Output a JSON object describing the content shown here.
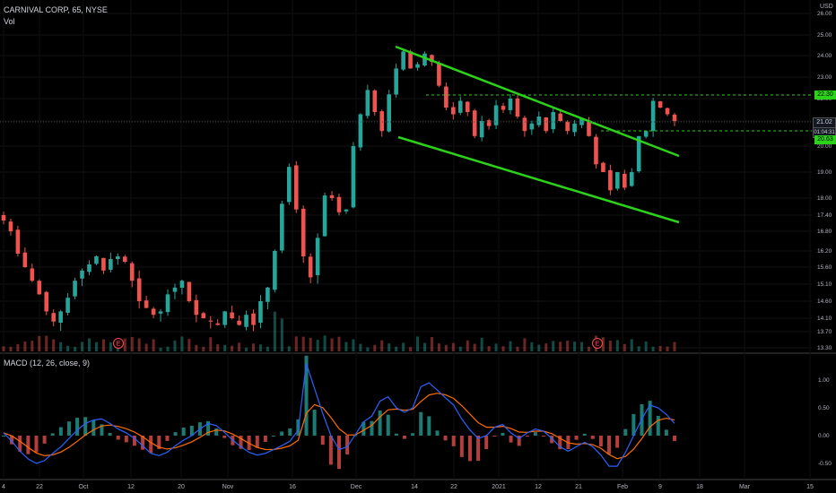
{
  "header": {
    "symbol": "CARNIVAL CORP, 65, NYSE",
    "volume_label": "Vol",
    "macd_label": "MACD (12, 26, close, 9)",
    "currency": "USD"
  },
  "price_tags": {
    "top_dashed": "22.30",
    "current": "21.02",
    "countdown": "01:04:31",
    "bottom_dashed": "20.63"
  },
  "colors": {
    "up": "#26a69a",
    "down": "#ef5350",
    "trendline": "#2cd11a",
    "dashed": "#2cd11a",
    "macd_line": "#2962ff",
    "signal_line": "#ff6d00",
    "earnings_marker": "#ef5350"
  },
  "chart_data": {
    "type": "line",
    "title": "CARNIVAL CORP, 65, NYSE",
    "y_ticks": [
      "26.00",
      "25.00",
      "24.00",
      "23.00",
      "22.00",
      "21.00",
      "20.00",
      "19.00",
      "18.00",
      "17.40",
      "16.80",
      "16.20",
      "15.60",
      "15.10",
      "14.60",
      "14.10",
      "13.70",
      "13.30"
    ],
    "x_ticks": [
      "4",
      "22",
      "Oct",
      "12",
      "20",
      "Nov",
      "16",
      "Dec",
      "14",
      "22",
      "2021",
      "12",
      "21",
      "Feb",
      "9",
      "18",
      "Mar",
      "15"
    ],
    "macd_y_ticks": [
      "1.00",
      "0.50",
      "0.00",
      "-0.50"
    ],
    "series": [
      {
        "name": "price",
        "values": [
          17.2,
          16.8,
          16.1,
          15.6,
          15.2,
          14.8,
          14.3,
          14.0,
          14.3,
          14.7,
          15.2,
          15.5,
          15.7,
          16.0,
          15.5,
          15.9,
          16.0,
          15.8,
          15.2,
          14.6,
          14.4,
          14.2,
          14.3,
          14.8,
          15.0,
          15.2,
          14.6,
          14.2,
          14.1,
          14.0,
          13.9,
          14.3,
          14.1,
          13.9,
          14.2,
          13.9,
          14.6,
          15.0,
          16.2,
          17.8,
          19.2,
          17.6,
          16.0,
          15.3,
          16.6,
          18.1,
          18.0,
          17.5,
          17.6,
          20.0,
          21.3,
          22.4,
          21.4,
          20.6,
          22.2,
          23.4,
          24.2,
          23.4,
          23.6,
          24.1,
          23.7,
          22.6,
          21.6,
          21.3,
          21.9,
          21.4,
          20.4,
          21.0,
          20.8,
          21.7,
          21.5,
          22.0,
          21.2,
          20.6,
          20.9,
          21.2,
          20.6,
          21.4,
          21.0,
          20.6,
          20.9,
          21.1,
          20.4,
          19.3,
          19.0,
          18.3,
          19.0,
          18.4,
          19.0,
          20.4,
          20.6,
          21.9,
          21.6,
          21.3,
          21.0
        ]
      },
      {
        "name": "MACD (12, 26, close, 9)",
        "values": [
          0.05,
          -0.1,
          -0.28,
          -0.42,
          -0.5,
          -0.45,
          -0.32,
          -0.2,
          -0.05,
          0.1,
          0.22,
          0.28,
          0.3,
          0.22,
          0.12,
          0.05,
          -0.05,
          -0.18,
          -0.32,
          -0.36,
          -0.3,
          -0.18,
          -0.08,
          0.0,
          0.12,
          0.22,
          0.18,
          0.06,
          -0.08,
          -0.2,
          -0.3,
          -0.35,
          -0.32,
          -0.25,
          -0.18,
          -0.1,
          0.1,
          1.3,
          0.85,
          0.4,
          0.0,
          -0.25,
          -0.2,
          0.02,
          0.25,
          0.35,
          0.62,
          0.7,
          0.5,
          0.42,
          0.5,
          0.88,
          0.95,
          0.82,
          0.68,
          0.55,
          0.3,
          0.1,
          -0.05,
          0.0,
          0.15,
          0.2,
          0.05,
          -0.05,
          0.05,
          0.12,
          0.08,
          -0.05,
          -0.2,
          -0.28,
          -0.2,
          -0.12,
          -0.2,
          -0.35,
          -0.55,
          -0.55,
          -0.3,
          0.0,
          0.3,
          0.55,
          0.5,
          0.38,
          0.22
        ]
      }
    ]
  },
  "earnings_markers": [
    "E",
    "E"
  ]
}
